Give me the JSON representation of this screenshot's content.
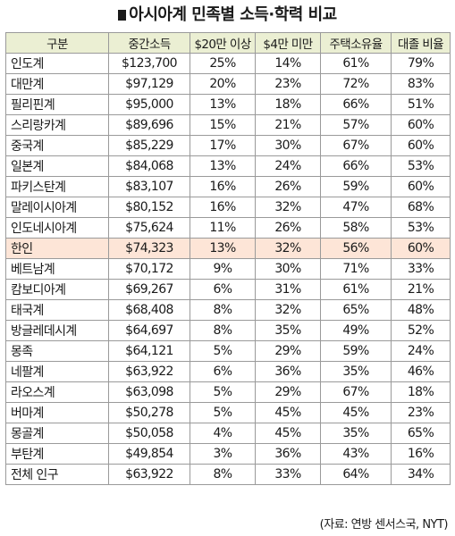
{
  "title": "아시아계 민족별 소득·학력 비교",
  "columns": [
    "구분",
    "중간소득",
    "$20만 이상",
    "$4만 미만",
    "주택소유율",
    "대졸 비율"
  ],
  "rows": [
    [
      "인도계",
      "$123,700",
      "25%",
      "14%",
      "61%",
      "79%"
    ],
    [
      "대만계",
      "$97,129",
      "20%",
      "23%",
      "72%",
      "83%"
    ],
    [
      "필리핀계",
      "$95,000",
      "13%",
      "18%",
      "66%",
      "51%"
    ],
    [
      "스리랑카계",
      "$89,696",
      "15%",
      "21%",
      "57%",
      "60%"
    ],
    [
      "중국계",
      "$85,229",
      "17%",
      "30%",
      "67%",
      "60%"
    ],
    [
      "일본계",
      "$84,068",
      "13%",
      "24%",
      "66%",
      "53%"
    ],
    [
      "파키스탄계",
      "$83,107",
      "16%",
      "26%",
      "59%",
      "60%"
    ],
    [
      "말레이시아계",
      "$80,152",
      "16%",
      "32%",
      "47%",
      "68%"
    ],
    [
      "인도네시아계",
      "$75,624",
      "11%",
      "26%",
      "58%",
      "53%"
    ],
    [
      "한인",
      "$74,323",
      "13%",
      "32%",
      "56%",
      "60%"
    ],
    [
      "베트남계",
      "$70,172",
      "9%",
      "30%",
      "71%",
      "33%"
    ],
    [
      "캄보디아계",
      "$69,267",
      "6%",
      "31%",
      "61%",
      "21%"
    ],
    [
      "태국계",
      "$68,408",
      "8%",
      "32%",
      "65%",
      "48%"
    ],
    [
      "방글레데시계",
      "$64,697",
      "8%",
      "35%",
      "49%",
      "52%"
    ],
    [
      "몽족",
      "$64,121",
      "5%",
      "29%",
      "59%",
      "24%"
    ],
    [
      "네팔계",
      "$63,922",
      "6%",
      "36%",
      "35%",
      "46%"
    ],
    [
      "라오스계",
      "$63,098",
      "5%",
      "29%",
      "67%",
      "18%"
    ],
    [
      "버마계",
      "$50,278",
      "5%",
      "45%",
      "45%",
      "23%"
    ],
    [
      "몽골계",
      "$50,058",
      "4%",
      "45%",
      "35%",
      "65%"
    ],
    [
      "부탄계",
      "$49,854",
      "3%",
      "36%",
      "43%",
      "16%"
    ],
    [
      "전체 인구",
      "$63,922",
      "8%",
      "33%",
      "64%",
      "34%"
    ]
  ],
  "highlight_row": 9,
  "highlight_color": "#fde5d7",
  "header_color": "#ebefd3",
  "source": "(자료: 연방 센서스국, NYT)"
}
